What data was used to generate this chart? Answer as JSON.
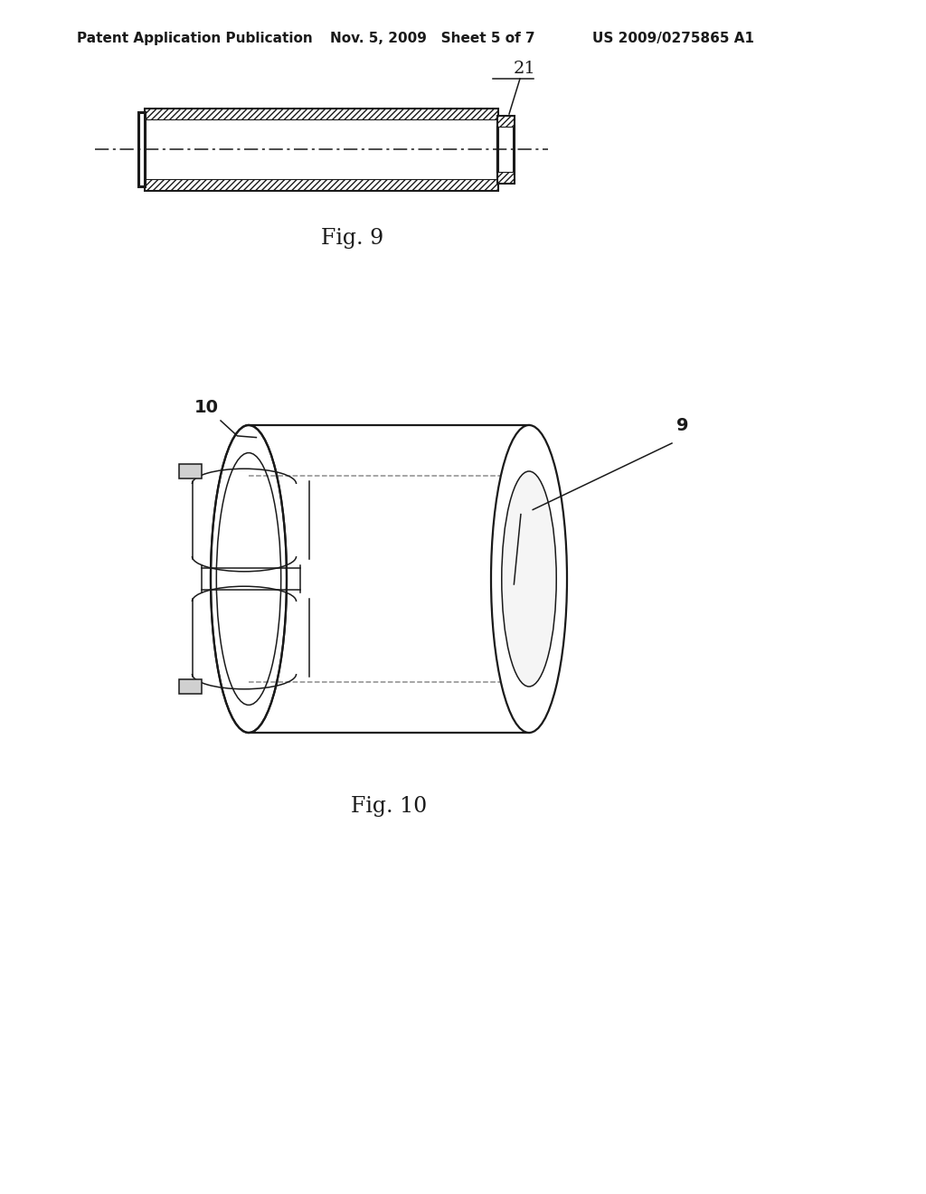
{
  "bg_color": "#ffffff",
  "line_color": "#1a1a1a",
  "header_left": "Patent Application Publication",
  "header_mid": "Nov. 5, 2009   Sheet 5 of 7",
  "header_right": "US 2009/0275865 A1",
  "fig9_label": "Fig. 9",
  "fig10_label": "Fig. 10",
  "label_21": "21",
  "label_10": "10",
  "label_9": "9"
}
